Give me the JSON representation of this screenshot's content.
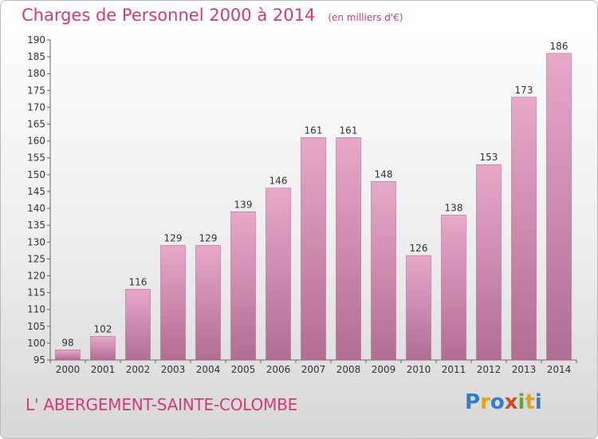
{
  "colors": {
    "accent": "#d23a7a",
    "bar_light": "#e7a8ca",
    "bar_dark": "#b26d92"
  },
  "header": {
    "title": "Charges de Personnel 2000 à 2014",
    "subtitle": "(en milliers d'€)"
  },
  "footer": {
    "location": "L' ABERGEMENT-SAINTE-COLOMBE",
    "logo": "Proxiti"
  },
  "chart_data": {
    "type": "bar",
    "title": "Charges de Personnel 2000 à 2014",
    "subtitle": "(en milliers d'€)",
    "xlabel": "",
    "ylabel": "",
    "categories": [
      "2000",
      "2001",
      "2002",
      "2003",
      "2004",
      "2005",
      "2006",
      "2007",
      "2008",
      "2009",
      "2010",
      "2011",
      "2012",
      "2013",
      "2014"
    ],
    "values": [
      98,
      102,
      116,
      129,
      129,
      139,
      146,
      161,
      161,
      148,
      126,
      138,
      153,
      173,
      186
    ],
    "ylim": [
      95,
      190
    ],
    "yticks": [
      95,
      100,
      105,
      110,
      115,
      120,
      125,
      130,
      135,
      140,
      145,
      150,
      155,
      160,
      165,
      170,
      175,
      180,
      185,
      190
    ],
    "grid": false,
    "legend": "none",
    "data_labels": true
  }
}
